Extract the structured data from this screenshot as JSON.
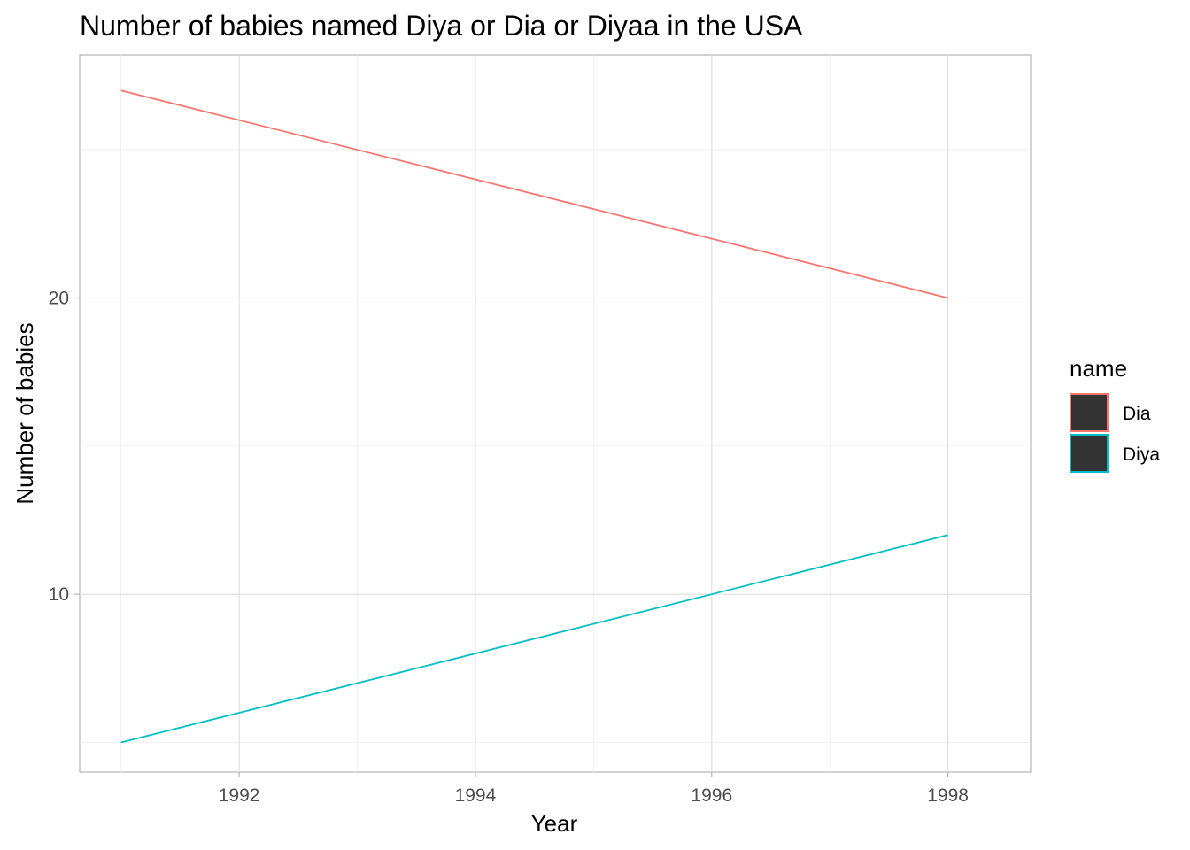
{
  "chart_data": {
    "type": "line",
    "title": "Number of babies named Diya or Dia or Diyaa in the USA",
    "xlabel": "Year",
    "ylabel": "Number of babies",
    "xlim": [
      1990.65,
      1998.7
    ],
    "ylim": [
      4.0,
      28.2
    ],
    "x_ticks": [
      1992,
      1994,
      1996,
      1998
    ],
    "y_ticks": [
      10,
      20
    ],
    "grid": true,
    "legend": {
      "title": "name",
      "position": "right"
    },
    "series": [
      {
        "name": "Dia",
        "color": "#F8766D",
        "x": [
          1991,
          1998
        ],
        "y": [
          27,
          20
        ]
      },
      {
        "name": "Diya",
        "color": "#00BFC4",
        "x": [
          1991,
          1998
        ],
        "y": [
          5,
          12
        ]
      }
    ]
  }
}
